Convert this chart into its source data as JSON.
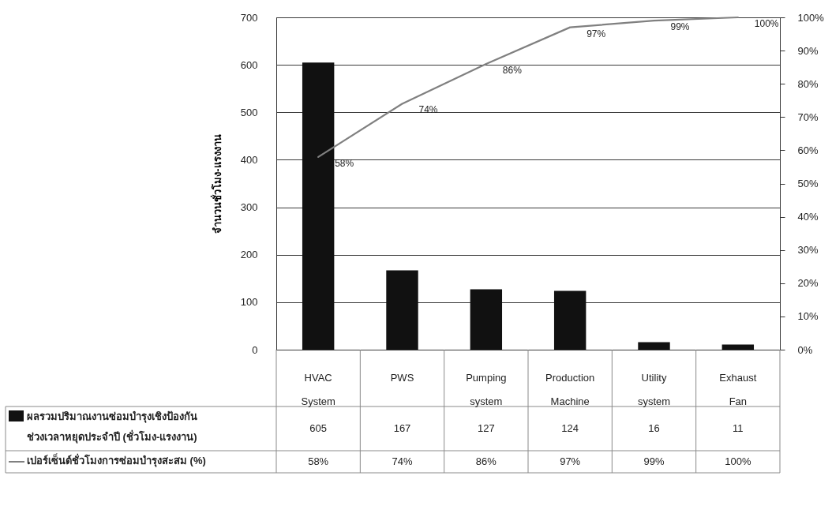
{
  "chart_data": {
    "type": "bar",
    "ylabel": "จำนวนชั่วโมง-แรงงาน",
    "categories": [
      "HVAC System",
      "PWS",
      "Pumping system",
      "Production Machine",
      "Utility system",
      "Exhaust Fan"
    ],
    "series": [
      {
        "name": "ผลรวมปริมาณงานซ่อมบำรุงเชิงป้องกัน\nช่วงเวลาหยุดประจำปี (ชั่วโมง-แรงงาน)",
        "color": "#111111",
        "values": [
          605,
          167,
          127,
          124,
          16,
          11
        ],
        "value_labels": [
          "605",
          "167",
          "127",
          "124",
          "16",
          "11"
        ]
      },
      {
        "name": "เปอร์เซ็นต์ชั่วโมงการซ่อมบำรุงสะสม (%)",
        "type": "line",
        "axis": "y2",
        "color": "#808080",
        "values": [
          58,
          74,
          86,
          97,
          99,
          100
        ],
        "value_labels": [
          "58%",
          "74%",
          "86%",
          "97%",
          "99%",
          "100%"
        ]
      }
    ],
    "ylim": [
      0,
      700
    ],
    "yticks": [
      0,
      100,
      200,
      300,
      400,
      500,
      600,
      700
    ],
    "y2lim": [
      0,
      100
    ],
    "y2ticks": [
      {
        "value": 0,
        "label": "0%"
      },
      {
        "value": 10,
        "label": "10%"
      },
      {
        "value": 20,
        "label": "20%"
      },
      {
        "value": 30,
        "label": "30%"
      },
      {
        "value": 40,
        "label": "40%"
      },
      {
        "value": 50,
        "label": "50%"
      },
      {
        "value": 60,
        "label": "60%"
      },
      {
        "value": 70,
        "label": "70%"
      },
      {
        "value": 80,
        "label": "80%"
      },
      {
        "value": 90,
        "label": "90%"
      },
      {
        "value": 100,
        "label": "100%"
      }
    ],
    "grid": "y",
    "legend": "bottom"
  }
}
